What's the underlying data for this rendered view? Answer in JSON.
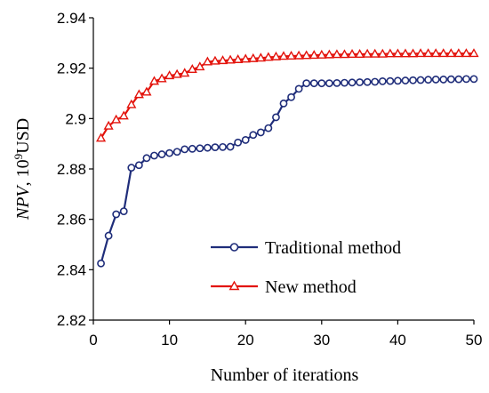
{
  "chart_data": {
    "type": "line",
    "title": "",
    "xlabel": "Number of iterations",
    "ylabel_italic": "NPV",
    "ylabel_sep": ", 10",
    "ylabel_sup": "9",
    "ylabel_unit": "USD",
    "xlim": [
      0,
      50
    ],
    "ylim": [
      2.82,
      2.94
    ],
    "xticks": [
      0,
      10,
      20,
      30,
      40,
      50
    ],
    "yticks": [
      2.82,
      2.84,
      2.86,
      2.88,
      2.9,
      2.92,
      2.94
    ],
    "ytick_labels": [
      "2.82",
      "2.84",
      "2.86",
      "2.88",
      "2.9",
      "2.92",
      "2.94"
    ],
    "grid": false,
    "legend_position": "lower-right-inside",
    "x": [
      1,
      2,
      3,
      4,
      5,
      6,
      7,
      8,
      9,
      10,
      11,
      12,
      13,
      14,
      15,
      16,
      17,
      18,
      19,
      20,
      21,
      22,
      23,
      24,
      25,
      26,
      27,
      28,
      29,
      30,
      31,
      32,
      33,
      34,
      35,
      36,
      37,
      38,
      39,
      40,
      41,
      42,
      43,
      44,
      45,
      46,
      47,
      48,
      49,
      50
    ],
    "series": [
      {
        "name": "Traditional method",
        "color": "#1f2d7a",
        "marker": "circle",
        "values": [
          2.8425,
          2.8535,
          2.862,
          2.8632,
          2.8805,
          2.8815,
          2.8843,
          2.8853,
          2.8858,
          2.8863,
          2.8868,
          2.8878,
          2.888,
          2.8882,
          2.8884,
          2.8886,
          2.8887,
          2.8888,
          2.8905,
          2.8915,
          2.8935,
          2.8945,
          2.8962,
          2.9005,
          2.906,
          2.9085,
          2.9118,
          2.914,
          2.914,
          2.914,
          2.914,
          2.9141,
          2.9142,
          2.9143,
          2.9144,
          2.9145,
          2.9146,
          2.9148,
          2.9149,
          2.915,
          2.9151,
          2.9152,
          2.9153,
          2.9154,
          2.9155,
          2.9155,
          2.9156,
          2.9156,
          2.9157,
          2.9157
        ]
      },
      {
        "name": "New method",
        "color": "#e3120b",
        "marker": "triangle",
        "values": [
          2.8922,
          2.897,
          2.8995,
          2.901,
          2.9055,
          2.9095,
          2.9105,
          2.9148,
          2.9158,
          2.917,
          2.9175,
          2.918,
          2.9195,
          2.9205,
          2.9225,
          2.9228,
          2.923,
          2.9232,
          2.9234,
          2.9236,
          2.9238,
          2.924,
          2.9243,
          2.9245,
          2.9247,
          2.9248,
          2.9249,
          2.925,
          2.9251,
          2.9252,
          2.9253,
          2.9254,
          2.9254,
          2.9255,
          2.9255,
          2.9256,
          2.9256,
          2.9256,
          2.9257,
          2.9257,
          2.9257,
          2.9257,
          2.9258,
          2.9258,
          2.9258,
          2.9258,
          2.9258,
          2.9258,
          2.9258,
          2.9258
        ]
      }
    ]
  }
}
